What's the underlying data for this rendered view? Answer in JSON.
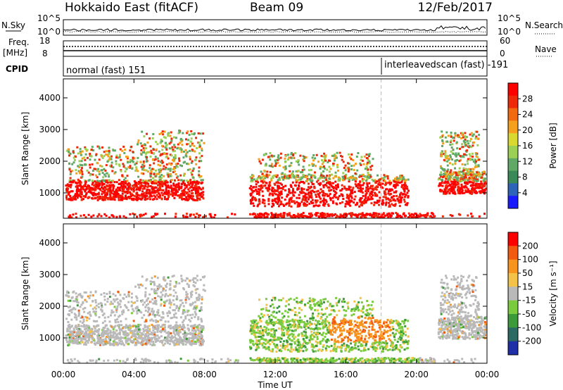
{
  "header": {
    "title": "Hokkaido East (fitACF)",
    "beam": "Beam 09",
    "date": "12/Feb/2017"
  },
  "top_panels": {
    "nsky_label": "N.Sky",
    "nsearch_label": "N.Search",
    "noise_ticks_left": [
      "10^5",
      "10^0"
    ],
    "noise_ticks_right": [
      "10^5",
      "10^0"
    ],
    "freq_label": "Freq.",
    "freq_unit": "[MHz]",
    "freq_ticks": [
      "18",
      "8"
    ],
    "nave_label": "Nave",
    "nave_ticks": [
      "60",
      "0"
    ],
    "cpid_label": "CPID",
    "cpid_segments": [
      "normal (fast) 151",
      "interleavedscan (fast) -191"
    ]
  },
  "chart_data": [
    {
      "type": "heatmap",
      "name": "power",
      "ylabel": "Slant Range [km]",
      "y_ticks": [
        1000,
        2000,
        3000,
        4000
      ],
      "ylim": [
        200,
        4600
      ],
      "xlim_hours": [
        0,
        24
      ],
      "colorbar_label": "Power [dB]",
      "colorbar_ticks": [
        "4",
        "8",
        "12",
        "16",
        "20",
        "24",
        "28"
      ],
      "colorbar_range": [
        0,
        32
      ],
      "colors": [
        "#1a1aff",
        "#2d63b8",
        "#3a8a58",
        "#5fa865",
        "#9ccf55",
        "#d8d830",
        "#f4a01c",
        "#f26a10",
        "#ee2a0a",
        "#ff0000"
      ]
    },
    {
      "type": "heatmap",
      "name": "velocity",
      "ylabel": "Slant Range [km]",
      "y_ticks": [
        1000,
        2000,
        3000,
        4000
      ],
      "ylim": [
        200,
        4600
      ],
      "xlim_hours": [
        0,
        24
      ],
      "colorbar_label": "Velocity [m s⁻¹]",
      "colorbar_ticks": [
        "200",
        "100",
        "50",
        "15",
        "-15",
        "-50",
        "-100",
        "-200"
      ],
      "colorbar_range": [
        -250,
        250
      ],
      "colors": [
        "#1f2fa8",
        "#2a6a62",
        "#3d9a3a",
        "#7acb3e",
        "#b9b9b9",
        "#f4c248",
        "#f7941d",
        "#f25a0f",
        "#ff0000"
      ]
    }
  ],
  "x_axis": {
    "ticks": [
      "00:00",
      "04:00",
      "08:00",
      "12:00",
      "16:00",
      "20:00",
      "00:00"
    ],
    "label": "Time UT"
  }
}
